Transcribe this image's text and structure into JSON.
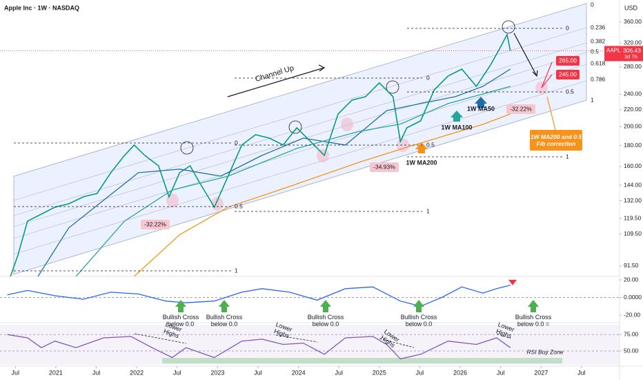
{
  "chart_data": [
    {
      "type": "line",
      "title": "Apple Inc · 1W · NASDAQ",
      "currency": "USD",
      "countdown": "3d 7h",
      "log_scale": true,
      "grid": false,
      "xlim": [
        2020.31,
        2027.97
      ],
      "ylim": [
        86.3,
        407.6
      ],
      "yticks": [
        {
          "value": 360,
          "label": "360.00"
        },
        {
          "value": 320,
          "label": "320.00"
        },
        {
          "value": 280,
          "label": "280.00"
        },
        {
          "value": 240,
          "label": "240.00"
        },
        {
          "value": 220,
          "label": "220.00"
        },
        {
          "value": 200,
          "label": "200.00"
        },
        {
          "value": 180,
          "label": "180.00"
        },
        {
          "value": 160,
          "label": "160.00"
        },
        {
          "value": 144,
          "label": "144.00"
        },
        {
          "value": 132,
          "label": "132.00"
        },
        {
          "value": 119.5,
          "label": "119.50"
        },
        {
          "value": 109.5,
          "label": "109.50"
        },
        {
          "value": 91.5,
          "label": "91.50"
        }
      ],
      "series": [
        {
          "name": "AAPL",
          "color": "#089981",
          "x": [
            2020.44,
            2020.53,
            2020.65,
            2020.82,
            2020.99,
            2021.16,
            2021.34,
            2021.51,
            2021.68,
            2021.85,
            2021.97,
            2022.1,
            2022.27,
            2022.4,
            2022.53,
            2022.66,
            2022.78,
            2022.96,
            2023.13,
            2023.3,
            2023.47,
            2023.64,
            2023.81,
            2023.98,
            2024.15,
            2024.32,
            2024.49,
            2024.66,
            2024.83,
            2025.0,
            2025.17,
            2025.26,
            2025.34,
            2025.51,
            2025.68,
            2025.85,
            2026.02,
            2026.2,
            2026.37,
            2026.49,
            2026.58,
            2026.62
          ],
          "values": [
            86.3,
            97.0,
            117.7,
            122.4,
            127.3,
            129.7,
            134.9,
            137.5,
            154.5,
            170.3,
            180.5,
            170.3,
            160.6,
            134.9,
            154.5,
            160.6,
            145.8,
            127.3,
            151.5,
            180.5,
            191.2,
            187.6,
            180.5,
            198.8,
            184.0,
            170.3,
            214.8,
            232.2,
            236.8,
            255.9,
            236.8,
            184.0,
            198.8,
            206.7,
            246.1,
            266.0,
            276.5,
            250.9,
            281.9,
            310.7,
            335.7,
            306.43
          ]
        },
        {
          "name": "1W MA50",
          "color": "#1e6fa8",
          "x": [
            2020.78,
            2021.16,
            2021.59,
            2022.02,
            2022.53,
            2023.04,
            2023.55,
            2024.06,
            2024.58,
            2025.09,
            2025.51,
            2025.94,
            2026.28,
            2026.62
          ],
          "values": [
            86.3,
            113.3,
            132.3,
            154.5,
            157.6,
            151.5,
            170.3,
            187.6,
            180.5,
            219.0,
            227.8,
            236.8,
            250.9,
            276.5
          ]
        },
        {
          "name": "1W MA100",
          "color": "#26a69a",
          "x": [
            2021.25,
            2021.85,
            2022.44,
            2023.13,
            2023.98,
            2024.75,
            2025.26,
            2025.85,
            2026.62
          ],
          "values": [
            86.3,
            117.7,
            140.2,
            151.5,
            177.0,
            194.9,
            203.0,
            227.8,
            250.9
          ]
        },
        {
          "name": "1W MA200",
          "color": "#f7931a",
          "x": [
            2021.97,
            2022.53,
            2023.13,
            2023.89,
            2024.75,
            2025.43,
            2026.28,
            2026.62
          ],
          "values": [
            86.3,
            109.0,
            127.3,
            143.0,
            163.8,
            180.5,
            202.7,
            214.8
          ]
        }
      ],
      "fib_groups": [
        [
          0,
          0.5,
          1
        ],
        [
          0,
          0.5,
          1
        ],
        [
          0,
          0.5,
          1
        ],
        [
          0,
          0.236,
          0.382,
          0.5,
          0.618,
          0.786,
          1
        ]
      ],
      "annotations": [
        "Channel Up",
        "-32.22%",
        "-34.93%",
        "-32.22%",
        "265.00",
        "245.00",
        "1W MA200 and 0.5 Fib correction"
      ]
    },
    {
      "type": "line",
      "xlim": [
        2020.31,
        2027.97
      ],
      "ylim": [
        -27,
        24
      ],
      "yticks": [
        {
          "value": 20,
          "label": "20.00"
        },
        {
          "value": 0,
          "label": "0.0000"
        },
        {
          "value": -20,
          "label": "-20.00"
        }
      ],
      "series": [
        {
          "color": "#2962ff",
          "x": [
            2020.4,
            2020.65,
            2020.99,
            2021.34,
            2021.68,
            2022.02,
            2022.36,
            2022.61,
            2022.96,
            2023.3,
            2023.55,
            2023.89,
            2024.23,
            2024.58,
            2024.92,
            2025.26,
            2025.51,
            2025.77,
            2026.02,
            2026.28,
            2026.45,
            2026.62
          ],
          "values": [
            3,
            8,
            2,
            -2,
            6,
            4,
            -4,
            -6,
            -4,
            6,
            10,
            6,
            -3,
            10,
            12,
            -4,
            -10,
            0,
            12,
            5,
            10,
            14
          ]
        }
      ],
      "annotations": [
        "Bullish Cross below 0.0",
        "Bullish Cross below 0.0",
        "Bullish Cross below 0.0",
        "Bullish Cross below 0.0",
        "Bullish Cross below 0.0 ="
      ]
    },
    {
      "type": "line",
      "xlim": [
        2020.31,
        2027.97
      ],
      "ylim": [
        29,
        92
      ],
      "xticks": [
        {
          "value": 2020.5,
          "label": "Jul"
        },
        2021,
        {
          "value": 2021.5,
          "label": "Jul"
        },
        2022,
        {
          "value": 2022.5,
          "label": "Jul"
        },
        2023,
        {
          "value": 2023.5,
          "label": "Jul"
        },
        2024,
        {
          "value": 2024.5,
          "label": "Jul"
        },
        2025,
        {
          "value": 2025.5,
          "label": "Jul"
        },
        2026,
        {
          "value": 2026.5,
          "label": "Jul"
        },
        2027,
        {
          "value": 2027.5,
          "label": "Jul"
        }
      ],
      "yticks": [
        {
          "value": 75,
          "label": "75.00"
        },
        {
          "value": 50,
          "label": "50.00"
        }
      ],
      "series": [
        {
          "color": "#7e57c2",
          "x": [
            2020.4,
            2020.65,
            2020.82,
            2020.99,
            2021.25,
            2021.59,
            2021.93,
            2022.19,
            2022.44,
            2022.61,
            2022.96,
            2023.3,
            2023.55,
            2023.81,
            2024.06,
            2024.32,
            2024.58,
            2024.92,
            2025.09,
            2025.26,
            2025.51,
            2025.85,
            2026.2,
            2026.45,
            2026.62
          ],
          "values": [
            75,
            70,
            55,
            65,
            55,
            70,
            72,
            55,
            40,
            55,
            40,
            65,
            68,
            60,
            62,
            45,
            70,
            72,
            60,
            38,
            45,
            65,
            60,
            70,
            55
          ]
        }
      ],
      "annotations": [
        "Lower Highs",
        "Lower Highs",
        "Lower Highs",
        "Lower Highs",
        "RSI Buy Zone"
      ]
    }
  ]
}
